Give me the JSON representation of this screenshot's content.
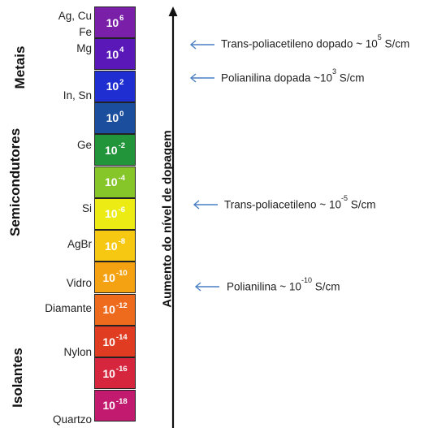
{
  "categories": {
    "metals": "Metais",
    "semiconductors": "Semicondutores",
    "insulators": "Isolantes"
  },
  "materials": [
    {
      "label": "Ag, Cu"
    },
    {
      "label": "Fe"
    },
    {
      "label": "Mg"
    },
    {
      "label": "In, Sn"
    },
    {
      "label": "Ge"
    },
    {
      "label": "Si"
    },
    {
      "label": "AgBr"
    },
    {
      "label": "Vidro"
    },
    {
      "label": "Diamante"
    },
    {
      "label": "Nylon"
    },
    {
      "label": "Quartzo"
    }
  ],
  "scale": [
    {
      "base": "10",
      "exp": "6",
      "color": "#7a1fa8"
    },
    {
      "base": "10",
      "exp": "4",
      "color": "#5a18b8"
    },
    {
      "base": "10",
      "exp": "2",
      "color": "#1e2ed0"
    },
    {
      "base": "10",
      "exp": "0",
      "color": "#1b4f9e"
    },
    {
      "base": "10",
      "exp": "-2",
      "color": "#22943a"
    },
    {
      "base": "10",
      "exp": "-4",
      "color": "#86c628"
    },
    {
      "base": "10",
      "exp": "-6",
      "color": "#ecec14"
    },
    {
      "base": "10",
      "exp": "-8",
      "color": "#f6c812"
    },
    {
      "base": "10",
      "exp": "-10",
      "color": "#f4a112"
    },
    {
      "base": "10",
      "exp": "-12",
      "color": "#ee6a1c"
    },
    {
      "base": "10",
      "exp": "-14",
      "color": "#e03c22"
    },
    {
      "base": "10",
      "exp": "-16",
      "color": "#d6263e"
    },
    {
      "base": "10",
      "exp": "-18",
      "color": "#c21a6e"
    }
  ],
  "axis_label": "Aumento do nível de dopagem",
  "annotations": [
    {
      "text": "Trans-poliacetileno  dopado  ~ 10",
      "sup": "5",
      "tail": " S/cm"
    },
    {
      "text": "Polianilina dopada ~10",
      "sup": "3",
      "tail": "  S/cm"
    },
    {
      "text": "Trans-poliacetileno ~ 10",
      "sup": "-5",
      "tail": " S/cm"
    },
    {
      "text": "Polianilina ~ 10",
      "sup": "-10",
      "tail": " S/cm"
    }
  ],
  "colors": {
    "arrow": "#4a7fc4",
    "axis": "#111111"
  }
}
